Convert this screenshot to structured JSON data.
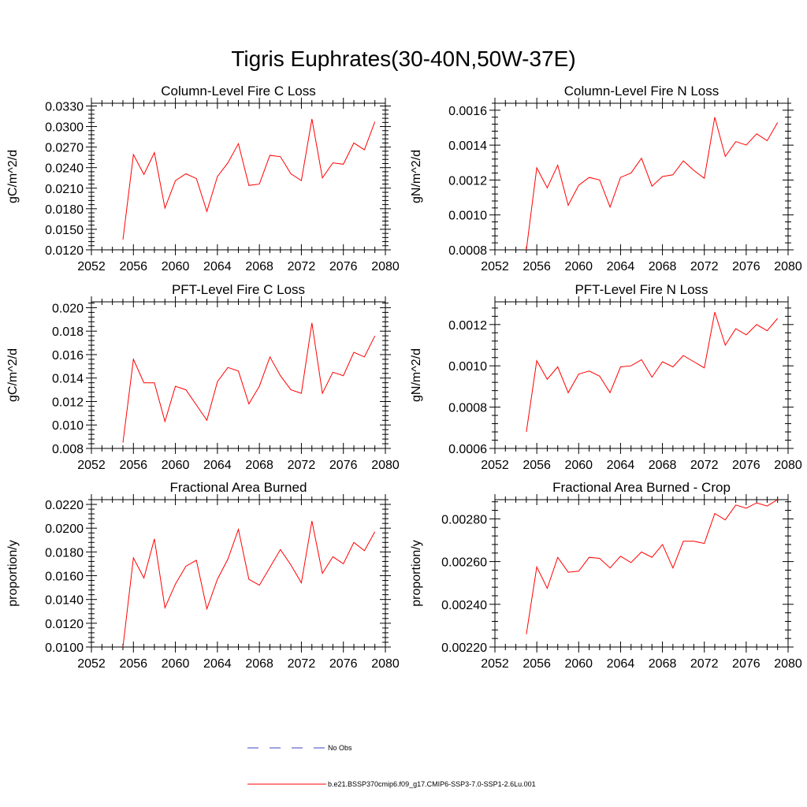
{
  "page": {
    "title": "Tigris Euphrates(30-40N,50W-37E)"
  },
  "legend": {
    "items": [
      {
        "label": "No Obs",
        "color": "#4040c0",
        "style": "dashed"
      },
      {
        "label": "b.e21.BSSP370cmip6.f09_g17.CMIP6-SSP3-7.0-SSP1-2.6Lu.001",
        "color": "#ff0000",
        "style": "solid"
      }
    ]
  },
  "chart_data": [
    {
      "type": "line",
      "title": "Column-Level Fire C Loss",
      "xlabel": "",
      "ylabel": "gC/m^2/d",
      "xlim": [
        2052,
        2080
      ],
      "ylim": [
        0.012,
        0.0334
      ],
      "xticks": [
        2052,
        2056,
        2060,
        2064,
        2068,
        2072,
        2076,
        2080
      ],
      "xtick_labels": [
        "2052",
        "2056",
        "2060",
        "2064",
        "2068",
        "2072",
        "2076",
        "2080"
      ],
      "yticks": [
        0.012,
        0.015,
        0.018,
        0.021,
        0.024,
        0.027,
        0.03,
        0.033
      ],
      "ytick_labels": [
        "0.0120",
        "0.0150",
        "0.0180",
        "0.0210",
        "0.0240",
        "0.0270",
        "0.0300",
        "0.0330"
      ],
      "series": [
        {
          "color": "#ff0000",
          "x": [
            2055,
            2056,
            2057,
            2058,
            2059,
            2060,
            2061,
            2062,
            2063,
            2064,
            2065,
            2066,
            2067,
            2068,
            2069,
            2070,
            2071,
            2072,
            2073,
            2074,
            2075,
            2076,
            2077,
            2078,
            2079
          ],
          "y": [
            0.0135,
            0.0259,
            0.023,
            0.0262,
            0.0181,
            0.0221,
            0.0231,
            0.0224,
            0.0176,
            0.0227,
            0.0247,
            0.0275,
            0.0214,
            0.0216,
            0.0258,
            0.0256,
            0.0231,
            0.0221,
            0.0311,
            0.0225,
            0.0247,
            0.0245,
            0.0276,
            0.0266,
            0.0307
          ]
        }
      ]
    },
    {
      "type": "line",
      "title": "Column-Level Fire N Loss",
      "xlabel": "",
      "ylabel": "gN/m^2/d",
      "xlim": [
        2052,
        2080
      ],
      "ylim": [
        0.0008,
        0.00164
      ],
      "xticks": [
        2052,
        2056,
        2060,
        2064,
        2068,
        2072,
        2076,
        2080
      ],
      "xtick_labels": [
        "2052",
        "2056",
        "2060",
        "2064",
        "2068",
        "2072",
        "2076",
        "2080"
      ],
      "yticks": [
        0.0008,
        0.001,
        0.0012,
        0.0014,
        0.0016
      ],
      "ytick_labels": [
        "0.0008",
        "0.0010",
        "0.0012",
        "0.0014",
        "0.0016"
      ],
      "series": [
        {
          "color": "#ff0000",
          "x": [
            2055,
            2056,
            2057,
            2058,
            2059,
            2060,
            2061,
            2062,
            2063,
            2064,
            2065,
            2066,
            2067,
            2068,
            2069,
            2070,
            2071,
            2072,
            2073,
            2074,
            2075,
            2076,
            2077,
            2078,
            2079
          ],
          "y": [
            0.0008,
            0.00127,
            0.001155,
            0.001285,
            0.001055,
            0.00117,
            0.001215,
            0.0012,
            0.001045,
            0.001215,
            0.00124,
            0.001325,
            0.001165,
            0.00122,
            0.00123,
            0.00131,
            0.001255,
            0.00121,
            0.00156,
            0.001335,
            0.00142,
            0.0014,
            0.001465,
            0.001425,
            0.00153
          ]
        }
      ]
    },
    {
      "type": "line",
      "title": "PFT-Level Fire C Loss",
      "xlabel": "",
      "ylabel": "gC/m^2/d",
      "xlim": [
        2052,
        2080
      ],
      "ylim": [
        0.008,
        0.0205
      ],
      "xticks": [
        2052,
        2056,
        2060,
        2064,
        2068,
        2072,
        2076,
        2080
      ],
      "xtick_labels": [
        "2052",
        "2056",
        "2060",
        "2064",
        "2068",
        "2072",
        "2076",
        "2080"
      ],
      "yticks": [
        0.008,
        0.01,
        0.012,
        0.014,
        0.016,
        0.018,
        0.02
      ],
      "ytick_labels": [
        "0.008",
        "0.010",
        "0.012",
        "0.014",
        "0.016",
        "0.018",
        "0.020"
      ],
      "series": [
        {
          "color": "#ff0000",
          "x": [
            2055,
            2056,
            2057,
            2058,
            2059,
            2060,
            2061,
            2062,
            2063,
            2064,
            2065,
            2066,
            2067,
            2068,
            2069,
            2070,
            2071,
            2072,
            2073,
            2074,
            2075,
            2076,
            2077,
            2078,
            2079
          ],
          "y": [
            0.0085,
            0.0156,
            0.0136,
            0.0136,
            0.0103,
            0.0133,
            0.013,
            0.0117,
            0.0104,
            0.0137,
            0.0149,
            0.0146,
            0.0118,
            0.0133,
            0.0158,
            0.0142,
            0.013,
            0.0127,
            0.0187,
            0.0127,
            0.0145,
            0.0142,
            0.0162,
            0.0158,
            0.0176
          ]
        }
      ]
    },
    {
      "type": "line",
      "title": "PFT-Level Fire N Loss",
      "xlabel": "",
      "ylabel": "gN/m^2/d",
      "xlim": [
        2052,
        2080
      ],
      "ylim": [
        0.0006,
        0.00131
      ],
      "xticks": [
        2052,
        2056,
        2060,
        2064,
        2068,
        2072,
        2076,
        2080
      ],
      "xtick_labels": [
        "2052",
        "2056",
        "2060",
        "2064",
        "2068",
        "2072",
        "2076",
        "2080"
      ],
      "yticks": [
        0.0006,
        0.0008,
        0.001,
        0.0012
      ],
      "ytick_labels": [
        "0.0006",
        "0.0008",
        "0.0010",
        "0.0012"
      ],
      "series": [
        {
          "color": "#ff0000",
          "x": [
            2055,
            2056,
            2057,
            2058,
            2059,
            2060,
            2061,
            2062,
            2063,
            2064,
            2065,
            2066,
            2067,
            2068,
            2069,
            2070,
            2071,
            2072,
            2073,
            2074,
            2075,
            2076,
            2077,
            2078,
            2079
          ],
          "y": [
            0.00068,
            0.001025,
            0.000935,
            0.000995,
            0.00087,
            0.00096,
            0.000975,
            0.00095,
            0.00087,
            0.000995,
            0.001,
            0.00103,
            0.000945,
            0.00102,
            0.000995,
            0.00105,
            0.00102,
            0.00099,
            0.00126,
            0.0011,
            0.00118,
            0.00115,
            0.0012,
            0.00117,
            0.00123
          ]
        }
      ]
    },
    {
      "type": "line",
      "title": "Fractional Area Burned",
      "xlabel": "",
      "ylabel": "proportion/y",
      "xlim": [
        2052,
        2080
      ],
      "ylim": [
        0.01,
        0.0224
      ],
      "xticks": [
        2052,
        2056,
        2060,
        2064,
        2068,
        2072,
        2076,
        2080
      ],
      "xtick_labels": [
        "2052",
        "2056",
        "2060",
        "2064",
        "2068",
        "2072",
        "2076",
        "2080"
      ],
      "yticks": [
        0.01,
        0.012,
        0.014,
        0.016,
        0.018,
        0.02,
        0.022
      ],
      "ytick_labels": [
        "0.0100",
        "0.0120",
        "0.0140",
        "0.0160",
        "0.0180",
        "0.0200",
        "0.0220"
      ],
      "series": [
        {
          "color": "#ff0000",
          "x": [
            2055,
            2056,
            2057,
            2058,
            2059,
            2060,
            2061,
            2062,
            2063,
            2064,
            2065,
            2066,
            2067,
            2068,
            2069,
            2070,
            2071,
            2072,
            2073,
            2074,
            2075,
            2076,
            2077,
            2078,
            2079
          ],
          "y": [
            0.01,
            0.0175,
            0.0158,
            0.0191,
            0.0133,
            0.0153,
            0.0168,
            0.0173,
            0.0132,
            0.0157,
            0.0174,
            0.0199,
            0.0157,
            0.0152,
            0.0167,
            0.0182,
            0.0169,
            0.0154,
            0.0206,
            0.0162,
            0.0176,
            0.017,
            0.0188,
            0.0181,
            0.0197
          ]
        }
      ]
    },
    {
      "type": "line",
      "title": "Fractional Area Burned - Crop",
      "xlabel": "",
      "ylabel": "proportion/y",
      "xlim": [
        2052,
        2080
      ],
      "ylim": [
        0.0022,
        0.00289
      ],
      "xticks": [
        2052,
        2056,
        2060,
        2064,
        2068,
        2072,
        2076,
        2080
      ],
      "xtick_labels": [
        "2052",
        "2056",
        "2060",
        "2064",
        "2068",
        "2072",
        "2076",
        "2080"
      ],
      "yticks": [
        0.0022,
        0.0024,
        0.0026,
        0.0028
      ],
      "ytick_labels": [
        "0.00220",
        "0.00240",
        "0.00260",
        "0.00280"
      ],
      "series": [
        {
          "color": "#ff0000",
          "x": [
            2055,
            2056,
            2057,
            2058,
            2059,
            2060,
            2061,
            2062,
            2063,
            2064,
            2065,
            2066,
            2067,
            2068,
            2069,
            2070,
            2071,
            2072,
            2073,
            2074,
            2075,
            2076,
            2077,
            2078,
            2079
          ],
          "y": [
            0.00226,
            0.002575,
            0.002475,
            0.00262,
            0.00255,
            0.002555,
            0.00262,
            0.002615,
            0.00257,
            0.002625,
            0.002595,
            0.002645,
            0.00262,
            0.00268,
            0.00257,
            0.002695,
            0.002695,
            0.002685,
            0.002825,
            0.002795,
            0.002865,
            0.00285,
            0.002875,
            0.00286,
            0.00289
          ]
        }
      ]
    }
  ]
}
